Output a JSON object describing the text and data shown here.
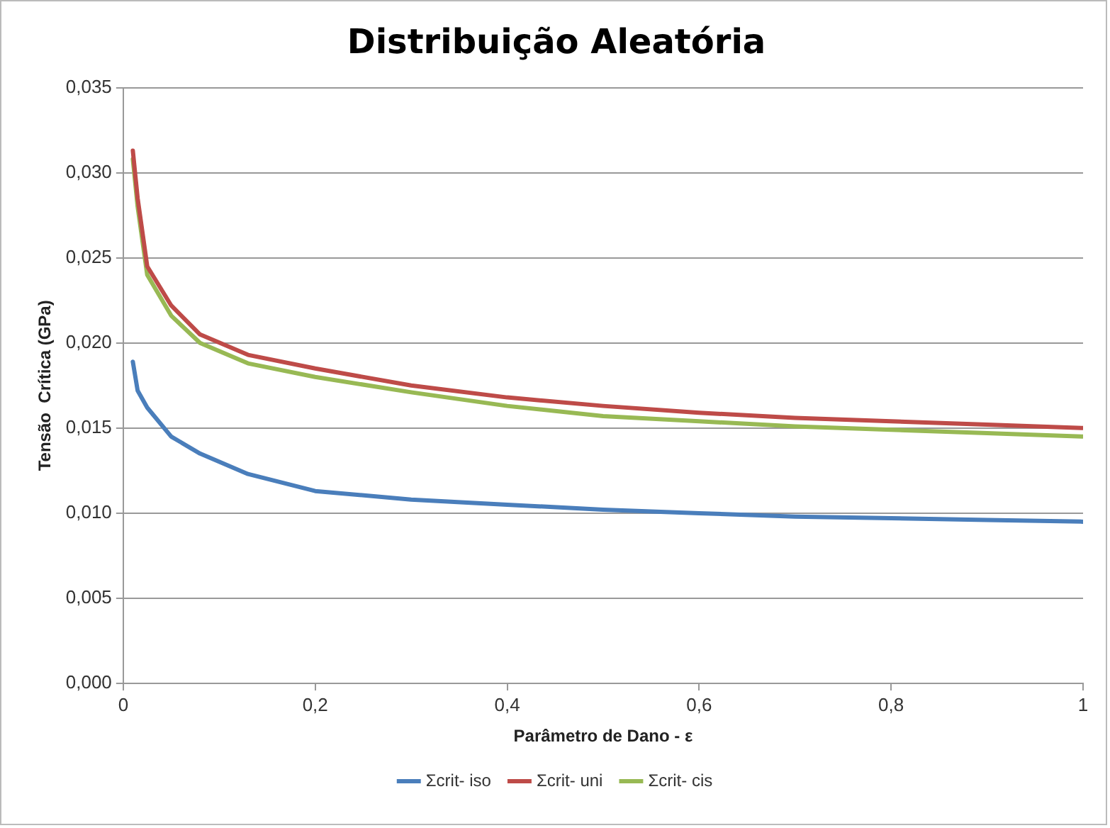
{
  "chart_data": {
    "type": "line",
    "title": "Distribuição Aleatória",
    "xlabel": "Parâmetro de Dano - ε",
    "ylabel": "Tensão  Crítica (GPa)",
    "x": [
      0.01,
      0.015,
      0.025,
      0.05,
      0.08,
      0.13,
      0.2,
      0.3,
      0.4,
      0.5,
      0.6,
      0.7,
      0.8,
      0.9,
      1
    ],
    "series": [
      {
        "name": "Σcrit- iso",
        "color": "#4a7ebb",
        "values": [
          0.0189,
          0.0172,
          0.0162,
          0.0145,
          0.0135,
          0.0123,
          0.0113,
          0.0108,
          0.0105,
          0.0102,
          0.01,
          0.0098,
          0.0097,
          0.0096,
          0.0095
        ]
      },
      {
        "name": "Σcrit- uni",
        "color": "#be4b48",
        "values": [
          0.0313,
          0.0285,
          0.0245,
          0.0222,
          0.0205,
          0.0193,
          0.0185,
          0.0175,
          0.0168,
          0.0163,
          0.0159,
          0.0156,
          0.0154,
          0.0152,
          0.015
        ]
      },
      {
        "name": "Σcrit- cis",
        "color": "#98b954",
        "values": [
          0.0308,
          0.028,
          0.024,
          0.0216,
          0.02,
          0.0188,
          0.018,
          0.0171,
          0.0163,
          0.0157,
          0.0154,
          0.0151,
          0.0149,
          0.0147,
          0.0145
        ]
      }
    ],
    "xlim": [
      0,
      1
    ],
    "xticks": [
      0,
      {
        "value": 0.2,
        "label": "0,2"
      },
      {
        "value": 0.4,
        "label": "0,4"
      },
      {
        "value": 0.6,
        "label": "0,6"
      },
      {
        "value": 0.8,
        "label": "0,8"
      },
      1
    ],
    "ylim": [
      0,
      0.035
    ],
    "yticks": [
      {
        "value": 0,
        "label": "0,000"
      },
      {
        "value": 0.005,
        "label": "0,005"
      },
      {
        "value": 0.01,
        "label": "0,010"
      },
      {
        "value": 0.015,
        "label": "0,015"
      },
      {
        "value": 0.02,
        "label": "0,020"
      },
      {
        "value": 0.025,
        "label": "0,025"
      },
      {
        "value": 0.03,
        "label": "0,030"
      },
      {
        "value": 0.035,
        "label": "0,035"
      }
    ],
    "grid": "y",
    "legend": "bottom",
    "marker": "none",
    "line_style": "solid"
  }
}
